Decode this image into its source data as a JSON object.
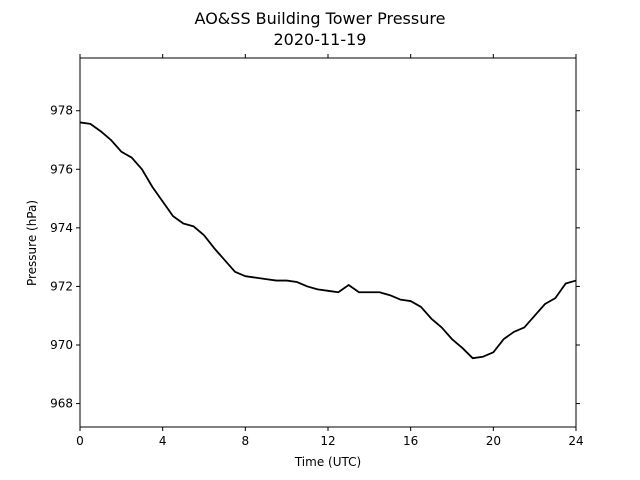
{
  "chart_data": {
    "type": "line",
    "title": "AO&SS Building Tower Pressure",
    "subtitle": "2020-11-19",
    "x_label": "Time (UTC)",
    "y_label": "Pressure (hPa)",
    "x": [
      0,
      0.5,
      1,
      1.5,
      2,
      2.5,
      3,
      3.5,
      4,
      4.5,
      5,
      5.5,
      6,
      6.5,
      7,
      7.5,
      8,
      8.5,
      9,
      9.5,
      10,
      10.5,
      11,
      11.5,
      12,
      12.5,
      13,
      13.5,
      14,
      14.5,
      15,
      15.5,
      16,
      16.5,
      17,
      17.5,
      18,
      18.5,
      19,
      19.5,
      20,
      20.5,
      21,
      21.5,
      22,
      22.5,
      23,
      23.5,
      24
    ],
    "series": [
      {
        "color": "#000000",
        "values": [
          977.6,
          977.55,
          977.3,
          977.0,
          976.6,
          976.4,
          976.0,
          975.4,
          974.9,
          974.4,
          974.15,
          974.05,
          973.75,
          973.3,
          972.9,
          972.5,
          972.35,
          972.3,
          972.25,
          972.2,
          972.2,
          972.15,
          972.0,
          971.9,
          971.85,
          971.8,
          972.05,
          971.8,
          971.8,
          971.8,
          971.7,
          971.55,
          971.5,
          971.3,
          970.9,
          970.6,
          970.2,
          969.9,
          969.55,
          969.6,
          969.75,
          970.2,
          970.45,
          970.6,
          971.0,
          971.4,
          971.6,
          972.1,
          972.2
        ]
      }
    ],
    "xlim": [
      0,
      24
    ],
    "ylim": [
      967.2,
      979.8
    ],
    "xticks": [
      0,
      4,
      8,
      12,
      16,
      20,
      24
    ],
    "yticks": [
      968,
      970,
      972,
      974,
      976,
      978
    ]
  }
}
